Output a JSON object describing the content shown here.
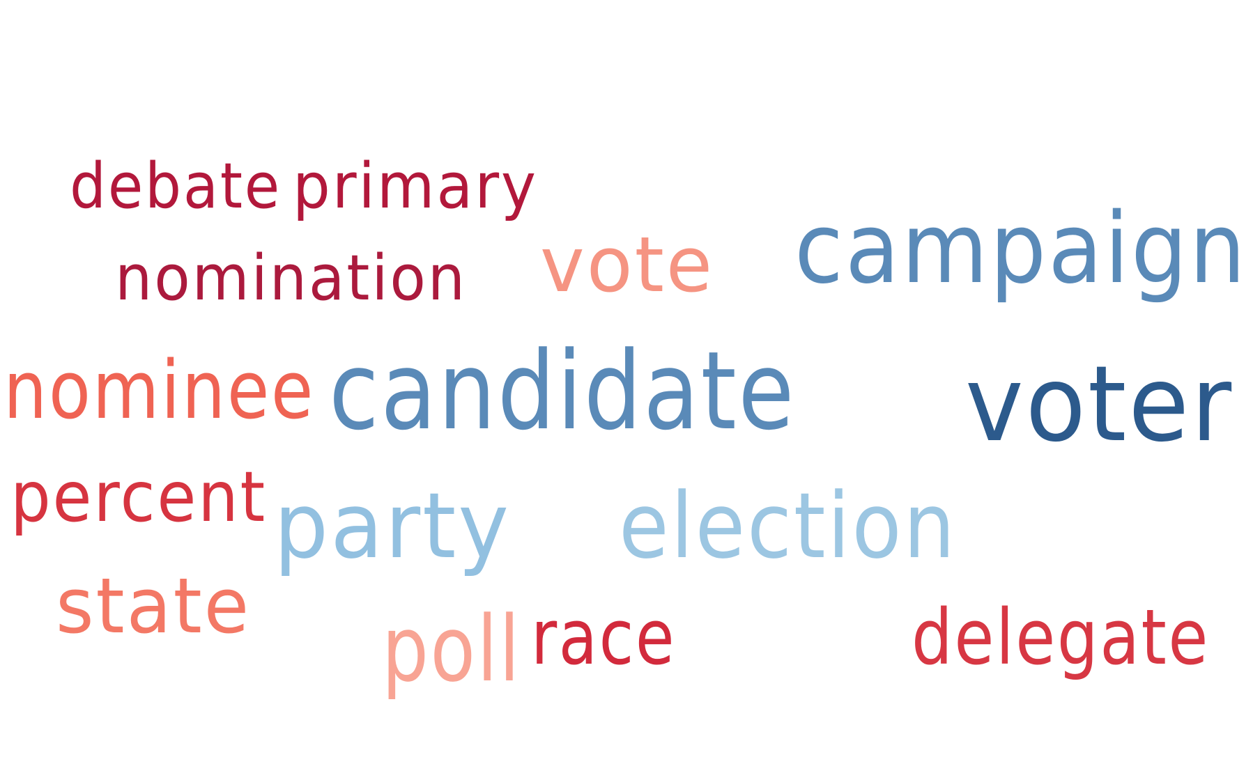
{
  "words": [
    {
      "id": "debate",
      "text": "debate",
      "color": "#b2183b"
    },
    {
      "id": "primary",
      "text": "primary",
      "color": "#b2183b"
    },
    {
      "id": "nomination",
      "text": "nomination",
      "color": "#ab1a3d"
    },
    {
      "id": "vote",
      "text": "vote",
      "color": "#f59482"
    },
    {
      "id": "campaign",
      "text": "campaign",
      "color": "#5a8ab8"
    },
    {
      "id": "nominee",
      "text": "nominee",
      "color": "#ef6353"
    },
    {
      "id": "candidate",
      "text": "candidate",
      "color": "#5a8ab8"
    },
    {
      "id": "voter",
      "text": "voter",
      "color": "#2c5a8c"
    },
    {
      "id": "percent",
      "text": "percent",
      "color": "#d63440"
    },
    {
      "id": "party",
      "text": "party",
      "color": "#92c0e0"
    },
    {
      "id": "election",
      "text": "election",
      "color": "#9cc6e2"
    },
    {
      "id": "state",
      "text": "state",
      "color": "#f37865"
    },
    {
      "id": "poll",
      "text": "poll",
      "color": "#f8a494"
    },
    {
      "id": "race",
      "text": "race",
      "color": "#d22a3c"
    },
    {
      "id": "delegate",
      "text": "delegate",
      "color": "#d73743"
    }
  ]
}
